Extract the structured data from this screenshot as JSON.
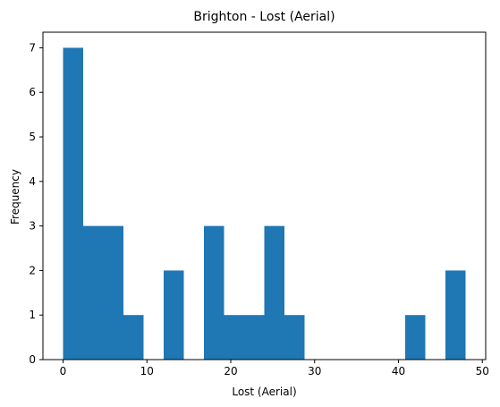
{
  "chart_data": {
    "type": "bar",
    "title": "Brighton - Lost (Aerial)",
    "xlabel": "Lost (Aerial)",
    "ylabel": "Frequency",
    "xlim": [
      -2.4,
      50.4
    ],
    "ylim": [
      0,
      7.35
    ],
    "xticks": [
      0,
      10,
      20,
      30,
      40,
      50
    ],
    "yticks": [
      0,
      1,
      2,
      3,
      4,
      5,
      6,
      7
    ],
    "grid": false,
    "bin_edges": [
      0,
      2.4,
      4.8,
      7.2,
      9.6,
      12,
      14.4,
      16.8,
      19.2,
      21.6,
      24,
      26.4,
      28.8,
      31.2,
      33.6,
      36,
      38.4,
      40.8,
      43.2,
      45.6,
      48
    ],
    "values": [
      7,
      3,
      3,
      1,
      0,
      2,
      0,
      3,
      1,
      1,
      3,
      1,
      0,
      0,
      0,
      0,
      0,
      1,
      0,
      2
    ],
    "bar_color": "#1f77b4"
  }
}
